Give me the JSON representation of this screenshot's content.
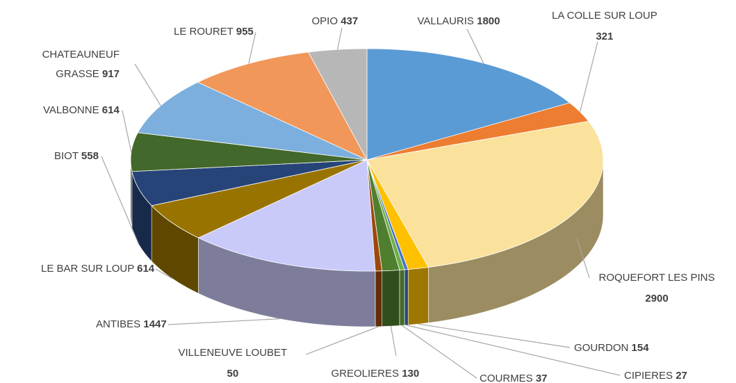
{
  "chart_data": {
    "type": "pie3d",
    "categories": [
      "VALLAURIS",
      "LA COLLE SUR LOUP",
      "ROQUEFORT LES PINS",
      "GOURDON",
      "CIPIERES",
      "COURMES",
      "GREOLIERES",
      "VILLENEUVE LOUBET",
      "ANTIBES",
      "LE BAR SUR LOUP",
      "BIOT",
      "VALBONNE",
      "CHATEAUNEUF GRASSE",
      "LE ROURET",
      "OPIO"
    ],
    "values": [
      1800,
      321,
      2900,
      154,
      27,
      37,
      130,
      50,
      1447,
      614,
      558,
      614,
      917,
      955,
      437
    ],
    "colors": [
      "#5b9bd5",
      "#ed7d31",
      "#fae29c",
      "#ffc000",
      "#4472c4",
      "#70ad47",
      "#4f7f2e",
      "#9e480e",
      "#c9c9fa",
      "#997300",
      "#264478",
      "#43682b",
      "#7cafdd",
      "#f1975a",
      "#b7b7b7"
    ]
  }
}
